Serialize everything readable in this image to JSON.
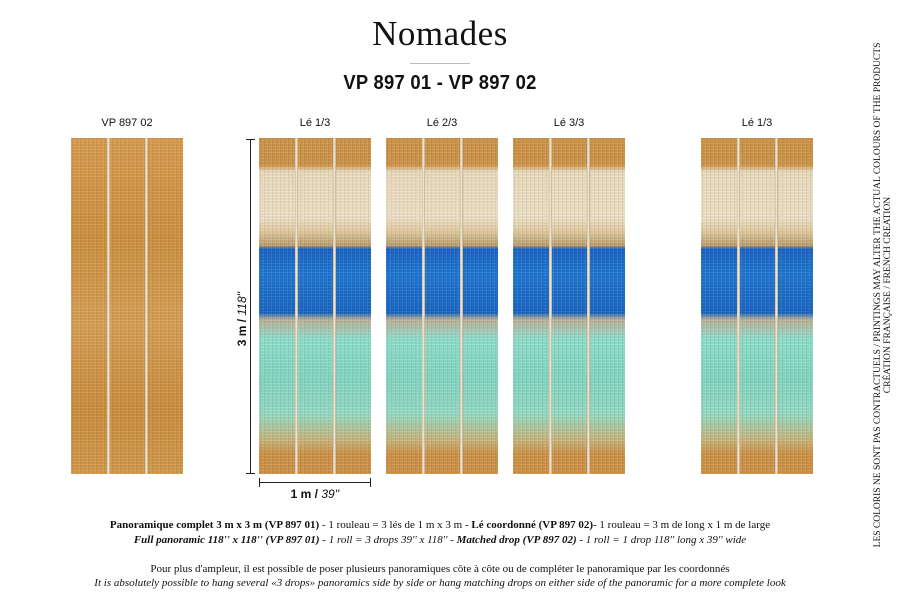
{
  "title": "Nomades",
  "subtitle": "VP 897 01 - VP 897 02",
  "panel_labels": [
    "VP 897 02",
    "Lé 1/3",
    "Lé 2/3",
    "Lé 3/3",
    "Lé 1/3"
  ],
  "dimension": {
    "height_metric": "3 m /",
    "height_imperial": "118''",
    "width_metric": "1 m /",
    "width_imperial": "39''"
  },
  "info": {
    "fr_1_bold": "Panoramique complet 3 m x 3 m (VP 897 01)",
    "fr_1_text": " - 1 rouleau = 3 lés de 1 m x 3 m - ",
    "fr_2_bold": "Lé coordonné (VP 897 02)",
    "fr_2_text": "- 1 rouleau = 3 m de long x 1 m de large",
    "en_1_bold": "Full panoramic 118'' x 118'' (VP 897 01)",
    "en_1_text": " - 1 roll = 3 drops 39'' x 118'' - ",
    "en_2_bold": "Matched drop (VP 897 02)",
    "en_2_text": " - 1 roll = 1 drop 118'' long x 39'' wide"
  },
  "note_fr": "Pour plus d'ampleur, il est possible de poser plusieurs panoramiques côte à côte ou de compléter le panoramique par les coordonnés",
  "note_en": "It is absolutely possible to hang several «3 drops» panoramics side by side or hang matching drops on either side of the panoramic for a more complete look",
  "side_line_1": "LES COLORIS NE SONT PAS CONTRACTUELS / PRINTINGS MAY ALTER THE ACTUAL COLOURS OF THE PRODUCTS",
  "side_line_2": "CRÉATION FRANÇAISE / FRENCH CREATION"
}
